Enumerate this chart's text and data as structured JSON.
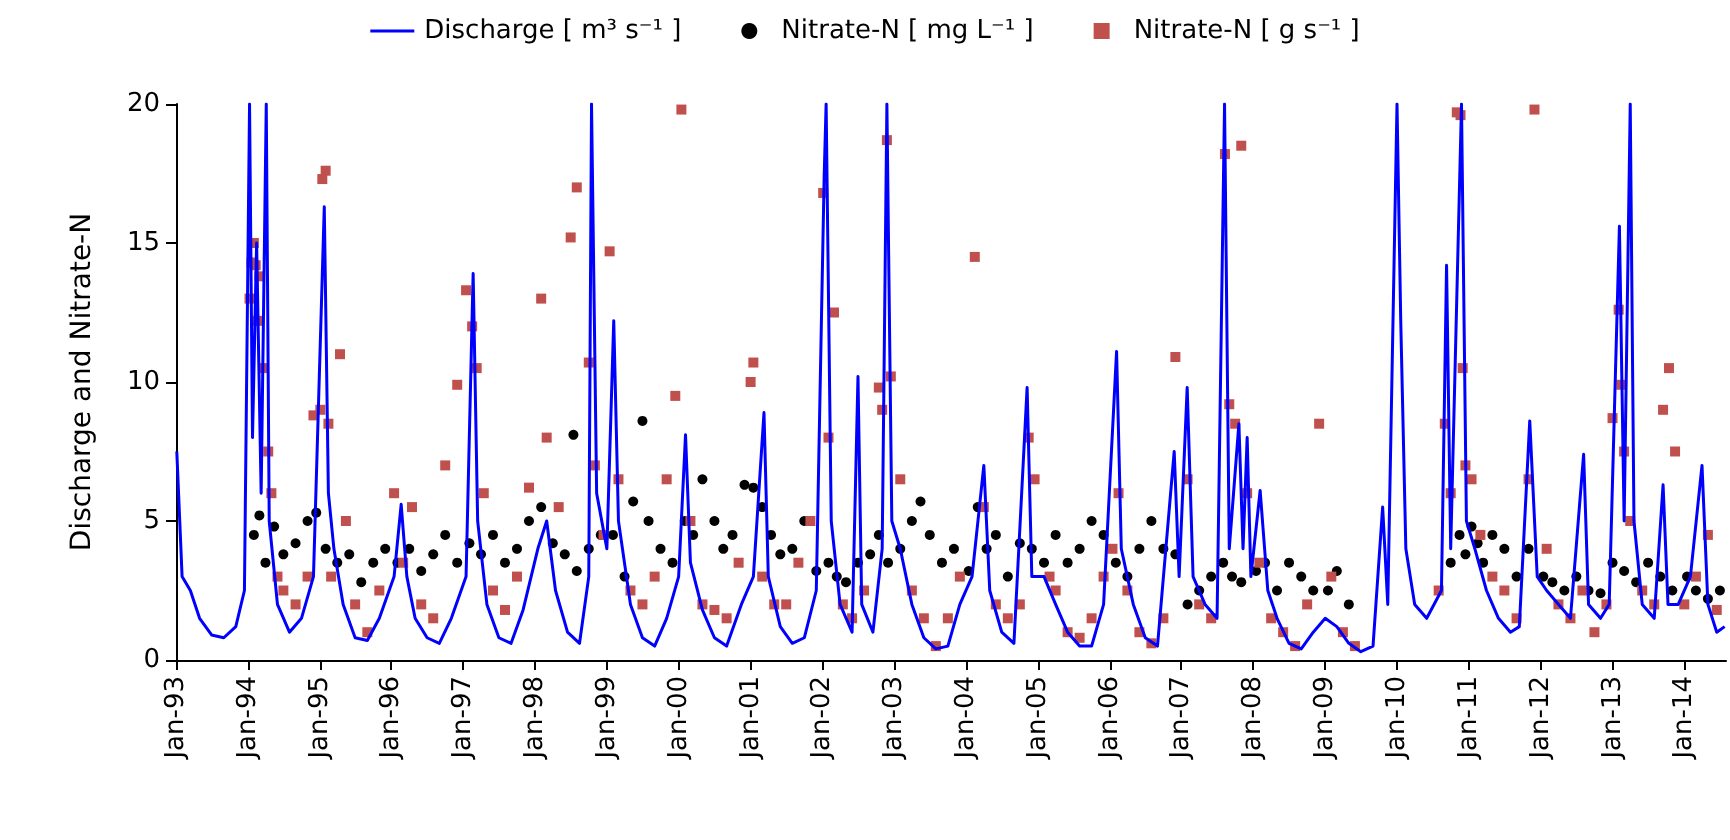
{
  "chart_data": {
    "type": "line",
    "ylabel": "Discharge and Nitrate-N",
    "xlim": [
      "1993-01-01",
      "2014-08-01"
    ],
    "xticks": [
      {
        "value": "1993-01-01",
        "label": "Jan-93"
      },
      {
        "value": "1994-01-01",
        "label": "Jan-94"
      },
      {
        "value": "1995-01-01",
        "label": "Jan-95"
      },
      {
        "value": "1996-01-01",
        "label": "Jan-96"
      },
      {
        "value": "1997-01-01",
        "label": "Jan-97"
      },
      {
        "value": "1998-01-01",
        "label": "Jan-98"
      },
      {
        "value": "1999-01-01",
        "label": "Jan-99"
      },
      {
        "value": "2000-01-01",
        "label": "Jan-00"
      },
      {
        "value": "2001-01-01",
        "label": "Jan-01"
      },
      {
        "value": "2002-01-01",
        "label": "Jan-02"
      },
      {
        "value": "2003-01-01",
        "label": "Jan-03"
      },
      {
        "value": "2004-01-01",
        "label": "Jan-04"
      },
      {
        "value": "2005-01-01",
        "label": "Jan-05"
      },
      {
        "value": "2006-01-01",
        "label": "Jan-06"
      },
      {
        "value": "2007-01-01",
        "label": "Jan-07"
      },
      {
        "value": "2008-01-01",
        "label": "Jan-08"
      },
      {
        "value": "2009-01-01",
        "label": "Jan-09"
      },
      {
        "value": "2010-01-01",
        "label": "Jan-10"
      },
      {
        "value": "2011-01-01",
        "label": "Jan-11"
      },
      {
        "value": "2012-01-01",
        "label": "Jan-12"
      },
      {
        "value": "2013-01-01",
        "label": "Jan-13"
      },
      {
        "value": "2014-01-01",
        "label": "Jan-14"
      }
    ],
    "ylim": [
      0,
      20
    ],
    "yticks": [
      0,
      5,
      10,
      15,
      20
    ],
    "grid": false,
    "legend": "top",
    "series": [
      {
        "name": "Discharge [ m³ s⁻¹ ]",
        "marker": "none",
        "line_style": "solid",
        "color": "#0000ff",
        "x": [
          "1993-01-05",
          "1993-02-01",
          "1993-03-15",
          "1993-05-01",
          "1993-07-01",
          "1993-09-01",
          "1993-11-01",
          "1993-12-15",
          "1994-01-10",
          "1994-01-25",
          "1994-02-15",
          "1994-03-10",
          "1994-04-05",
          "1994-04-20",
          "1994-06-01",
          "1994-08-01",
          "1994-10-01",
          "1994-12-01",
          "1995-01-25",
          "1995-02-15",
          "1995-03-15",
          "1995-05-01",
          "1995-07-01",
          "1995-09-01",
          "1995-11-01",
          "1996-01-15",
          "1996-02-20",
          "1996-03-20",
          "1996-05-01",
          "1996-07-01",
          "1996-09-01",
          "1996-11-01",
          "1997-01-15",
          "1997-02-20",
          "1997-03-15",
          "1997-05-01",
          "1997-07-01",
          "1997-09-01",
          "1997-11-01",
          "1998-01-15",
          "1998-03-01",
          "1998-04-15",
          "1998-06-15",
          "1998-08-15",
          "1998-10-01",
          "1998-10-15",
          "1998-11-10",
          "1999-01-01",
          "1999-02-05",
          "1999-03-01",
          "1999-05-01",
          "1999-07-01",
          "1999-09-01",
          "1999-11-01",
          "2000-01-01",
          "2000-02-05",
          "2000-03-01",
          "2000-05-01",
          "2000-07-01",
          "2000-09-01",
          "2000-11-15",
          "2001-01-15",
          "2001-03-10",
          "2001-04-01",
          "2001-06-01",
          "2001-08-01",
          "2001-10-01",
          "2001-12-01",
          "2002-01-10",
          "2002-01-20",
          "2002-02-15",
          "2002-04-01",
          "2002-06-01",
          "2002-07-01",
          "2002-07-20",
          "2002-09-15",
          "2002-11-01",
          "2002-11-25",
          "2002-12-20",
          "2003-02-01",
          "2003-04-01",
          "2003-06-01",
          "2003-08-01",
          "2003-10-01",
          "2003-12-01",
          "2004-02-01",
          "2004-04-01",
          "2004-05-01",
          "2004-07-01",
          "2004-09-01",
          "2004-11-07",
          "2004-12-01",
          "2005-02-01",
          "2005-04-01",
          "2005-06-01",
          "2005-08-01",
          "2005-10-01",
          "2005-12-01",
          "2006-02-05",
          "2006-03-01",
          "2006-05-01",
          "2006-07-01",
          "2006-09-01",
          "2006-11-25",
          "2006-12-20",
          "2007-01-30",
          "2007-03-01",
          "2007-05-01",
          "2007-07-01",
          "2007-08-08",
          "2007-09-01",
          "2007-10-20",
          "2007-11-10",
          "2007-12-01",
          "2007-12-20",
          "2008-02-05",
          "2008-03-15",
          "2008-05-01",
          "2008-07-01",
          "2008-09-01",
          "2008-11-01",
          "2009-01-01",
          "2009-03-01",
          "2009-05-01",
          "2009-07-01",
          "2009-09-01",
          "2009-10-20",
          "2009-11-15",
          "2010-01-01",
          "2010-01-20",
          "2010-02-15",
          "2010-04-01",
          "2010-06-01",
          "2010-08-15",
          "2010-09-10",
          "2010-10-01",
          "2010-11-25",
          "2010-12-20",
          "2011-02-01",
          "2011-04-01",
          "2011-06-01",
          "2011-08-01",
          "2011-09-15",
          "2011-11-07",
          "2011-12-15",
          "2012-02-01",
          "2012-04-01",
          "2012-06-01",
          "2012-08-07",
          "2012-09-01",
          "2012-11-01",
          "2012-12-15",
          "2013-02-05",
          "2013-03-01",
          "2013-04-01",
          "2013-04-20",
          "2013-06-01",
          "2013-08-01",
          "2013-09-15",
          "2013-10-10",
          "2013-12-01",
          "2014-02-01",
          "2014-04-01",
          "2014-05-01",
          "2014-06-15",
          "2014-07-25"
        ],
        "values": [
          7.5,
          3,
          2.5,
          1.5,
          0.9,
          0.8,
          1.2,
          2.5,
          20,
          8,
          15,
          6,
          20,
          5,
          2,
          1,
          1.5,
          3,
          16.3,
          6,
          4,
          2,
          0.8,
          0.7,
          1.5,
          3,
          5.6,
          3,
          1.5,
          0.8,
          0.6,
          1.5,
          3,
          13.9,
          5,
          2,
          0.8,
          0.6,
          1.8,
          4,
          5,
          2.5,
          1,
          0.6,
          3,
          20,
          6,
          4,
          12.2,
          5,
          2,
          0.8,
          0.5,
          1.5,
          3,
          8.1,
          3.5,
          1.8,
          0.8,
          0.5,
          2,
          3,
          8.9,
          3,
          1.2,
          0.6,
          0.8,
          2.5,
          17.4,
          20,
          5,
          2,
          1,
          10.2,
          2,
          1,
          4,
          20,
          5,
          4,
          2,
          0.8,
          0.4,
          0.5,
          2,
          3,
          7,
          2.5,
          1,
          0.6,
          9.8,
          3,
          3,
          2,
          1,
          0.5,
          0.5,
          2,
          11.1,
          4,
          2,
          0.8,
          0.5,
          7.5,
          3,
          9.8,
          3,
          2,
          1.5,
          20,
          4,
          8.5,
          4,
          8,
          3,
          6.1,
          2.5,
          1.5,
          0.6,
          0.4,
          1,
          1.5,
          1.2,
          0.6,
          0.3,
          0.5,
          5.5,
          2,
          20,
          12.2,
          4,
          2,
          1.5,
          2.5,
          14.2,
          4,
          20,
          5,
          4,
          2.5,
          1.5,
          1,
          1.2,
          8.6,
          3,
          2.5,
          2,
          1.5,
          7.4,
          2,
          1.5,
          2,
          15.6,
          5,
          20,
          5,
          2,
          1.5,
          6.3,
          2,
          2,
          3,
          7,
          2,
          1,
          1.2
        ]
      },
      {
        "name": "Nitrate-N [ mg L⁻¹ ]",
        "type": "scatter",
        "marker": "circle",
        "color": "#000000",
        "x": [
          "1994-02-01",
          "1994-03-01",
          "1994-04-01",
          "1994-05-15",
          "1994-07-01",
          "1994-09-01",
          "1994-11-01",
          "1994-12-15",
          "1995-02-01",
          "1995-04-01",
          "1995-06-01",
          "1995-08-01",
          "1995-10-01",
          "1995-12-01",
          "1996-02-01",
          "1996-04-01",
          "1996-06-01",
          "1996-08-01",
          "1996-10-01",
          "1996-12-01",
          "1997-02-01",
          "1997-04-01",
          "1997-06-01",
          "1997-08-01",
          "1997-10-01",
          "1997-12-01",
          "1998-02-01",
          "1998-04-01",
          "1998-06-01",
          "1998-07-15",
          "1998-08-01",
          "1998-10-01",
          "1998-12-01",
          "1999-02-01",
          "1999-04-01",
          "1999-05-15",
          "1999-07-01",
          "1999-08-01",
          "1999-10-01",
          "1999-12-01",
          "2000-02-01",
          "2000-03-15",
          "2000-05-01",
          "2000-07-01",
          "2000-08-15",
          "2000-10-01",
          "2000-12-01",
          "2001-01-15",
          "2001-03-01",
          "2001-04-15",
          "2001-06-01",
          "2001-08-01",
          "2001-10-01",
          "2001-12-01",
          "2002-02-01",
          "2002-03-15",
          "2002-05-01",
          "2002-07-01",
          "2002-09-01",
          "2002-10-15",
          "2002-12-01",
          "2003-02-01",
          "2003-04-01",
          "2003-05-15",
          "2003-07-01",
          "2003-09-01",
          "2003-11-01",
          "2004-01-15",
          "2004-03-01",
          "2004-04-15",
          "2004-06-01",
          "2004-08-01",
          "2004-10-01",
          "2004-12-01",
          "2005-02-01",
          "2005-04-01",
          "2005-06-01",
          "2005-08-01",
          "2005-10-01",
          "2005-12-01",
          "2006-02-01",
          "2006-04-01",
          "2006-06-01",
          "2006-08-01",
          "2006-10-01",
          "2006-12-01",
          "2007-02-01",
          "2007-04-01",
          "2007-06-01",
          "2007-08-01",
          "2007-09-15",
          "2007-11-01",
          "2008-01-15",
          "2008-03-01",
          "2008-05-01",
          "2008-07-01",
          "2008-09-01",
          "2008-11-01",
          "2009-01-15",
          "2009-03-01",
          "2009-05-01",
          "2010-10-01",
          "2010-11-15",
          "2010-12-15",
          "2011-01-15",
          "2011-02-15",
          "2011-03-15",
          "2011-05-01",
          "2011-07-01",
          "2011-09-01",
          "2011-11-01",
          "2012-01-15",
          "2012-03-01",
          "2012-05-01",
          "2012-07-01",
          "2012-09-01",
          "2012-11-01",
          "2013-01-01",
          "2013-03-01",
          "2013-05-01",
          "2013-07-01",
          "2013-09-01",
          "2013-11-01",
          "2014-01-15",
          "2014-03-01",
          "2014-05-01",
          "2014-07-01"
        ],
        "values": [
          4.5,
          5.2,
          3.5,
          4.8,
          3.8,
          4.2,
          5.0,
          5.3,
          4.0,
          3.5,
          3.8,
          2.8,
          3.5,
          4.0,
          3.5,
          4.0,
          3.2,
          3.8,
          4.5,
          3.5,
          4.2,
          3.8,
          4.5,
          3.5,
          4.0,
          5.0,
          5.5,
          4.2,
          3.8,
          8.1,
          3.2,
          4.0,
          4.5,
          4.5,
          3.0,
          5.7,
          8.6,
          5.0,
          4.0,
          3.5,
          5.0,
          4.5,
          6.5,
          5.0,
          4.0,
          4.5,
          6.3,
          6.2,
          5.5,
          4.5,
          3.8,
          4.0,
          5.0,
          3.2,
          3.5,
          3.0,
          2.8,
          3.5,
          3.8,
          4.5,
          3.5,
          4.0,
          5.0,
          5.7,
          4.5,
          3.5,
          4.0,
          3.2,
          5.5,
          4.0,
          4.5,
          3.0,
          4.2,
          4.0,
          3.5,
          4.5,
          3.5,
          4.0,
          5.0,
          4.5,
          3.5,
          3.0,
          4.0,
          5.0,
          4.0,
          3.8,
          2.0,
          2.5,
          3.0,
          3.5,
          3.0,
          2.8,
          3.2,
          3.5,
          2.5,
          3.5,
          3.0,
          2.5,
          2.5,
          3.2,
          2.0,
          3.5,
          4.5,
          3.8,
          4.8,
          4.2,
          3.5,
          4.5,
          4.0,
          3.0,
          4.0,
          3.0,
          2.8,
          2.5,
          3.0,
          2.5,
          2.4,
          3.5,
          3.2,
          2.8,
          3.5,
          3.0,
          2.5,
          3.0,
          2.5,
          2.2,
          2.5
        ]
      },
      {
        "name": "Nitrate-N [ g s⁻¹ ]",
        "type": "scatter",
        "marker": "square",
        "color": "#c0504d",
        "x": [
          "1994-01-10",
          "1994-01-20",
          "1994-02-01",
          "1994-02-10",
          "1994-02-20",
          "1994-03-01",
          "1994-03-20",
          "1994-04-15",
          "1994-05-01",
          "1994-06-01",
          "1994-07-01",
          "1994-09-01",
          "1994-11-01",
          "1994-12-01",
          "1995-01-05",
          "1995-01-15",
          "1995-02-01",
          "1995-02-15",
          "1995-03-01",
          "1995-04-15",
          "1995-05-15",
          "1995-07-01",
          "1995-09-01",
          "1995-11-01",
          "1996-01-15",
          "1996-03-01",
          "1996-04-15",
          "1996-06-01",
          "1996-08-01",
          "1996-10-01",
          "1996-12-01",
          "1997-01-15",
          "1997-02-15",
          "1997-03-10",
          "1997-04-15",
          "1997-06-01",
          "1997-08-01",
          "1997-10-01",
          "1997-12-01",
          "1998-02-01",
          "1998-03-01",
          "1998-05-01",
          "1998-07-01",
          "1998-08-01",
          "1998-10-01",
          "1998-11-01",
          "1998-12-15",
          "1999-01-15",
          "1999-03-01",
          "1999-05-01",
          "1999-07-01",
          "1999-09-01",
          "1999-11-01",
          "1999-12-15",
          "2000-01-15",
          "2000-03-01",
          "2000-05-01",
          "2000-07-01",
          "2000-09-01",
          "2000-11-01",
          "2001-01-01",
          "2001-01-15",
          "2001-03-01",
          "2001-05-01",
          "2001-07-01",
          "2001-09-01",
          "2001-11-01",
          "2002-01-05",
          "2002-02-01",
          "2002-03-01",
          "2002-04-15",
          "2002-06-01",
          "2002-08-01",
          "2002-10-15",
          "2002-11-01",
          "2002-11-25",
          "2002-12-15",
          "2003-02-01",
          "2003-04-01",
          "2003-06-01",
          "2003-08-01",
          "2003-10-01",
          "2003-12-01",
          "2004-02-15",
          "2004-04-01",
          "2004-06-01",
          "2004-08-01",
          "2004-10-01",
          "2004-11-15",
          "2004-12-15",
          "2005-03-01",
          "2005-04-01",
          "2005-06-01",
          "2005-08-01",
          "2005-10-01",
          "2005-12-01",
          "2006-01-15",
          "2006-02-15",
          "2006-04-01",
          "2006-06-01",
          "2006-08-01",
          "2006-10-01",
          "2006-12-01",
          "2007-02-01",
          "2007-04-01",
          "2007-06-01",
          "2007-08-10",
          "2007-09-01",
          "2007-10-01",
          "2007-11-01",
          "2007-12-01",
          "2008-02-01",
          "2008-04-01",
          "2008-06-01",
          "2008-08-01",
          "2008-10-01",
          "2008-12-01",
          "2009-02-01",
          "2009-04-01",
          "2009-06-01",
          "2010-08-01",
          "2010-09-01",
          "2010-10-01",
          "2010-11-01",
          "2010-11-20",
          "2010-12-01",
          "2010-12-15",
          "2011-01-15",
          "2011-03-01",
          "2011-05-01",
          "2011-07-01",
          "2011-09-01",
          "2011-11-01",
          "2011-12-01",
          "2012-02-01",
          "2012-04-01",
          "2012-06-01",
          "2012-08-01",
          "2012-10-01",
          "2012-12-01",
          "2013-01-01",
          "2013-02-01",
          "2013-02-15",
          "2013-03-01",
          "2013-04-01",
          "2013-06-01",
          "2013-08-01",
          "2013-09-15",
          "2013-10-15",
          "2013-11-15",
          "2014-01-01",
          "2014-03-01",
          "2014-05-01",
          "2014-06-15"
        ],
        "values": [
          13,
          14.3,
          15,
          14.2,
          12.2,
          13.8,
          10.5,
          7.5,
          6.0,
          3.0,
          2.5,
          2.0,
          3.0,
          8.8,
          9.0,
          17.3,
          17.6,
          8.5,
          3.0,
          11.0,
          5.0,
          2.0,
          1.0,
          2.5,
          6.0,
          3.5,
          5.5,
          2.0,
          1.5,
          7.0,
          9.9,
          13.3,
          12.0,
          10.5,
          6.0,
          2.5,
          1.8,
          3.0,
          6.2,
          13.0,
          8.0,
          5.5,
          15.2,
          17.0,
          10.7,
          7.0,
          4.5,
          14.7,
          6.5,
          2.5,
          2.0,
          3.0,
          6.5,
          9.5,
          19.8,
          5.0,
          2.0,
          1.8,
          1.5,
          3.5,
          10.0,
          10.7,
          3.0,
          2.0,
          2.0,
          3.5,
          5.0,
          16.8,
          8.0,
          12.5,
          2.0,
          1.5,
          2.5,
          9.8,
          9.0,
          18.7,
          10.2,
          6.5,
          2.5,
          1.5,
          0.5,
          1.5,
          3.0,
          14.5,
          5.5,
          2.0,
          1.5,
          2.0,
          8.0,
          6.5,
          3.0,
          2.5,
          1.0,
          0.8,
          1.5,
          3.0,
          4.0,
          6.0,
          2.5,
          1.0,
          0.6,
          1.5,
          10.9,
          6.5,
          2.0,
          1.5,
          18.2,
          9.2,
          8.5,
          18.5,
          6.0,
          3.5,
          1.5,
          1.0,
          0.5,
          2.0,
          8.5,
          3.0,
          1.0,
          0.5,
          2.5,
          8.5,
          6.0,
          19.7,
          19.6,
          10.5,
          7.0,
          6.5,
          4.5,
          3.0,
          2.5,
          1.5,
          6.5,
          19.8,
          4.0,
          2.0,
          1.5,
          2.5,
          1.0,
          2.0,
          8.7,
          12.6,
          9.9,
          7.5,
          5.0,
          2.5,
          2.0,
          9.0,
          10.5,
          7.5,
          2.0,
          3.0,
          4.5,
          1.8
        ]
      }
    ]
  }
}
